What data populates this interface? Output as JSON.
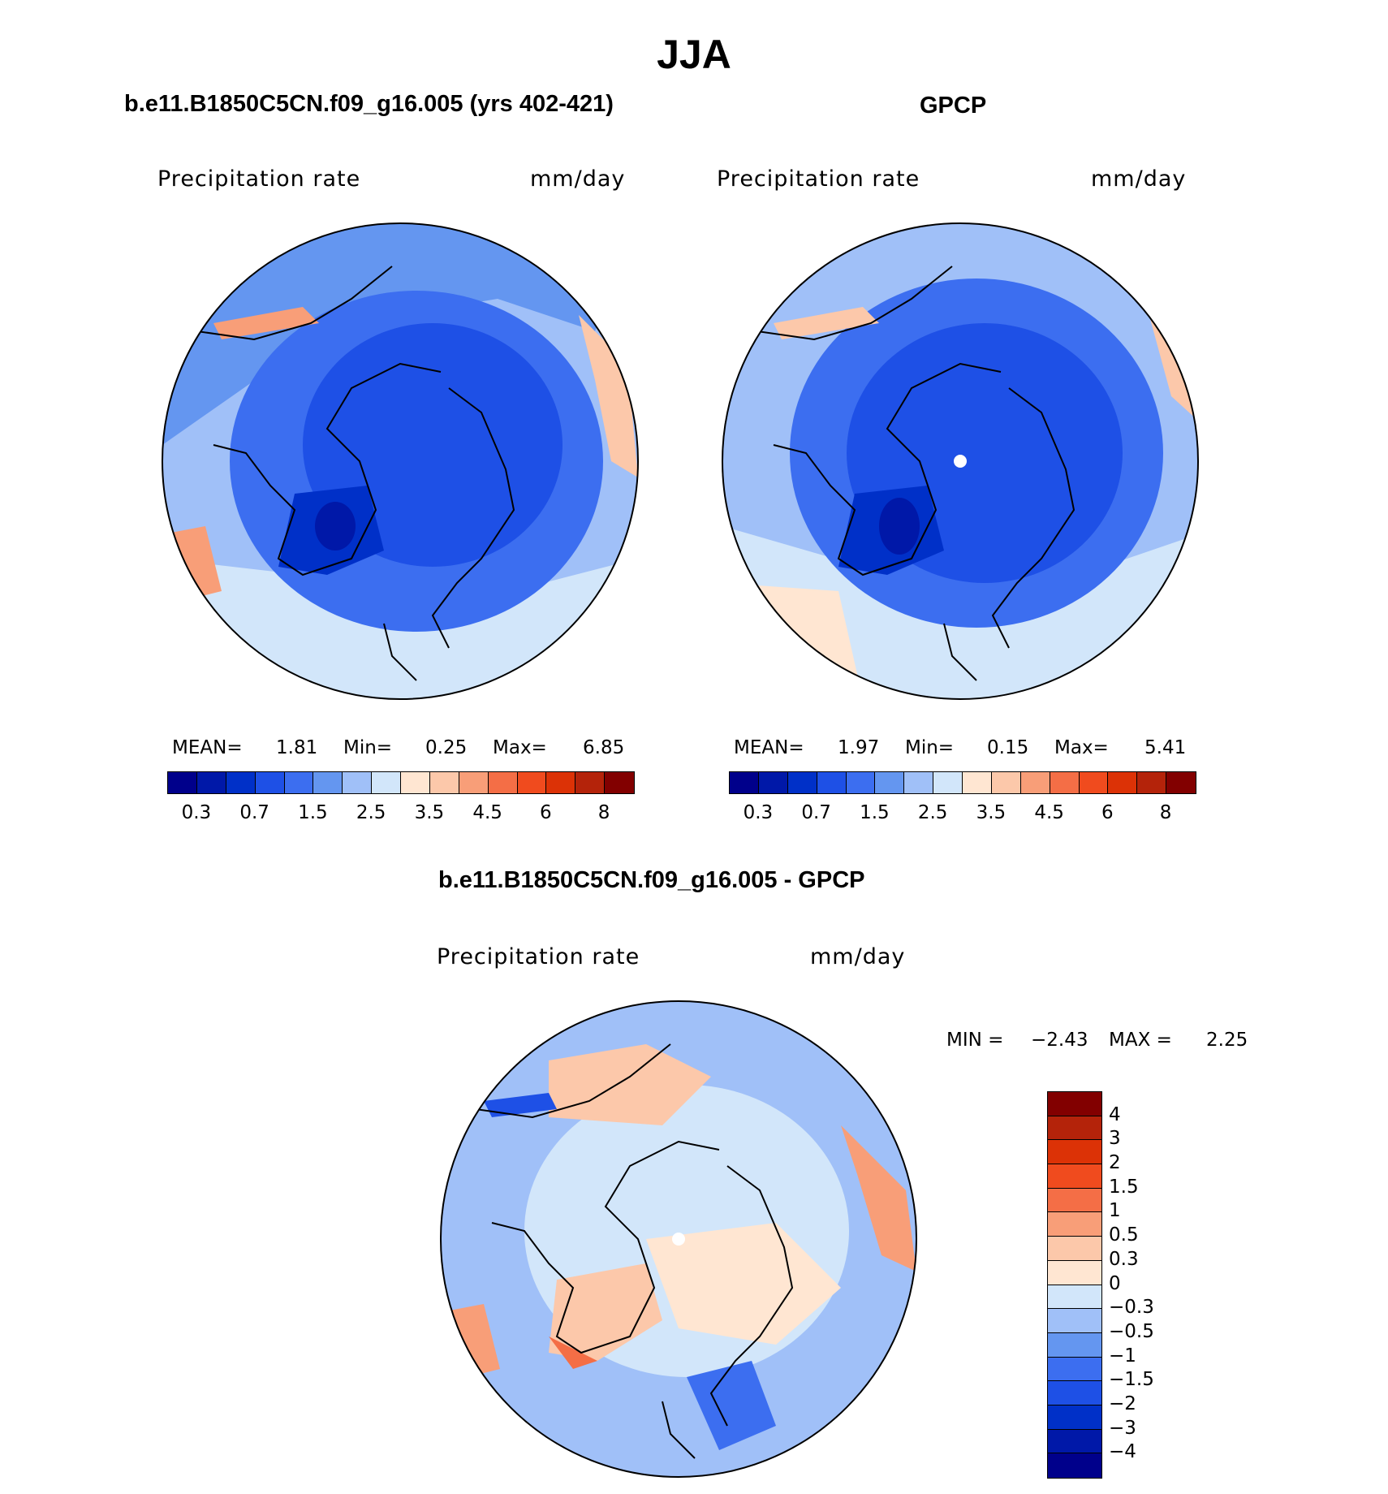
{
  "title": "JJA",
  "panels": {
    "model": {
      "title": "b.e11.B1850C5CN.f09_g16.005 (yrs 402-421)",
      "variable": "Precipitation  rate",
      "units": "mm/day",
      "mean_label": "MEAN=",
      "mean": "1.81",
      "min_label": "Min=",
      "min": "0.25",
      "max_label": "Max=",
      "max": "6.85"
    },
    "obs": {
      "title": "GPCP",
      "variable": "Precipitation  rate",
      "units": "mm/day",
      "mean_label": "MEAN=",
      "mean": "1.97",
      "min_label": "Min=",
      "min": "0.15",
      "max_label": "Max=",
      "max": "5.41"
    },
    "diff": {
      "title": "b.e11.B1850C5CN.f09_g16.005 - GPCP",
      "variable": "Precipitation  rate",
      "units": "mm/day",
      "min_label": "MIN =",
      "min": "−2.43",
      "max_label": "MAX =",
      "max": "2.25"
    }
  },
  "chart_data": [
    {
      "type": "heatmap",
      "projection": "north-polar-stereographic",
      "panel": "model",
      "colorbar": {
        "orientation": "horizontal",
        "levels": [
          "0.3",
          "0.7",
          "1.5",
          "2.5",
          "3.5",
          "4.5",
          "6",
          "8"
        ],
        "colors": [
          "#00008b",
          "#0018a8",
          "#0030c8",
          "#1e50e6",
          "#3c6ef0",
          "#6496f0",
          "#a0c0f8",
          "#d2e6fa",
          "#ffe6d2",
          "#fcc8aa",
          "#f89e78",
          "#f46e46",
          "#f04b1e",
          "#dc3206",
          "#b4230a",
          "#820000"
        ]
      },
      "regions": [
        {
          "name": "central-arctic",
          "level": "0.7-1.5"
        },
        {
          "name": "greenland",
          "level": "0.3-0.7"
        },
        {
          "name": "north-atlantic",
          "level": "1.5-2.5"
        },
        {
          "name": "north-pacific-coast",
          "level": "3.5-4.5"
        }
      ]
    },
    {
      "type": "heatmap",
      "projection": "north-polar-stereographic",
      "panel": "obs",
      "colorbar": {
        "orientation": "horizontal",
        "levels": [
          "0.3",
          "0.7",
          "1.5",
          "2.5",
          "3.5",
          "4.5",
          "6",
          "8"
        ],
        "colors": [
          "#00008b",
          "#0018a8",
          "#0030c8",
          "#1e50e6",
          "#3c6ef0",
          "#6496f0",
          "#a0c0f8",
          "#d2e6fa",
          "#ffe6d2",
          "#fcc8aa",
          "#f89e78",
          "#f46e46",
          "#f04b1e",
          "#dc3206",
          "#b4230a",
          "#820000"
        ]
      },
      "regions": [
        {
          "name": "central-arctic",
          "level": "0.7-1.5"
        },
        {
          "name": "greenland",
          "level": "0.3-0.7"
        },
        {
          "name": "north-atlantic",
          "level": "2.5-3.5"
        },
        {
          "name": "north-pacific-coast",
          "level": "3.5-4.5"
        }
      ]
    },
    {
      "type": "heatmap",
      "projection": "north-polar-stereographic",
      "panel": "diff",
      "colorbar": {
        "orientation": "vertical",
        "levels": [
          "4",
          "3",
          "2",
          "1.5",
          "1",
          "0.5",
          "0.3",
          "0",
          "−0.3",
          "−0.5",
          "−1",
          "−1.5",
          "−2",
          "−3",
          "−4"
        ],
        "colors": [
          "#820000",
          "#b4230a",
          "#dc3206",
          "#f04b1e",
          "#f46e46",
          "#f89e78",
          "#fcc8aa",
          "#ffe6d2",
          "#d2e6fa",
          "#a0c0f8",
          "#6496f0",
          "#3c6ef0",
          "#1e50e6",
          "#0030c8",
          "#0018a8",
          "#00008b"
        ]
      },
      "regions": [
        {
          "name": "central-arctic",
          "level": "-0.3-0"
        },
        {
          "name": "greenland",
          "level": "0.3-1"
        },
        {
          "name": "north-atlantic",
          "level": "-1--0.3"
        },
        {
          "name": "siberia",
          "level": "0.5-1"
        }
      ]
    }
  ]
}
